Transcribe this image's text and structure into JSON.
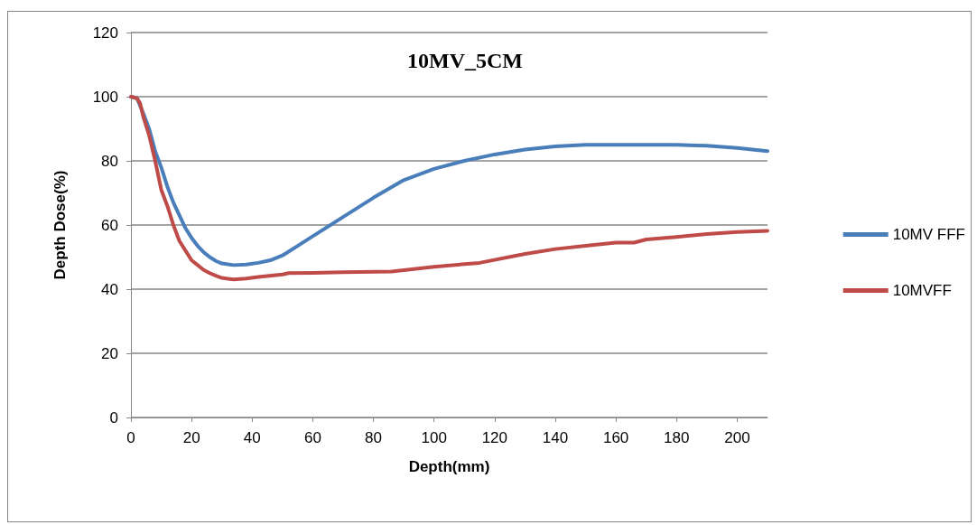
{
  "chart_data": {
    "type": "line",
    "title": "10MV_5CM",
    "xlabel": "Depth(mm)",
    "ylabel": "Depth Dose(%)",
    "xlim": [
      0,
      210
    ],
    "xticks": [
      0,
      20,
      40,
      60,
      80,
      100,
      120,
      140,
      160,
      180,
      200
    ],
    "ylim": [
      0,
      120
    ],
    "yticks": [
      0,
      20,
      40,
      60,
      80,
      100,
      120
    ],
    "grid": "y",
    "legend": "right",
    "marker": "none",
    "line_style": "solid",
    "series": [
      {
        "name": "10MV FFF",
        "color": "#4a7ebb",
        "x": [
          0,
          2,
          4,
          6,
          8,
          10,
          12,
          14,
          16,
          18,
          20,
          22,
          24,
          26,
          28,
          30,
          34,
          38,
          42,
          46,
          50,
          55,
          60,
          70,
          80,
          90,
          100,
          110,
          120,
          130,
          140,
          150,
          160,
          170,
          180,
          190,
          200,
          210
        ],
        "values": [
          100,
          99.5,
          95,
          90,
          83,
          78,
          72,
          67,
          63,
          59,
          56,
          53.5,
          51.5,
          50,
          48.8,
          48,
          47.5,
          47.7,
          48.2,
          49,
          50.5,
          53.5,
          56.5,
          62.5,
          68.5,
          74,
          77.5,
          80,
          82,
          83.5,
          84.5,
          85,
          85,
          85,
          85,
          84.7,
          84,
          83
        ]
      },
      {
        "name": "10MVFF",
        "color": "#be4b48",
        "x": [
          0,
          2,
          3,
          4,
          6,
          8,
          10,
          12,
          14,
          16,
          18,
          20,
          22,
          24,
          26,
          28,
          30,
          34,
          38,
          42,
          50,
          52,
          60,
          70,
          86,
          100,
          115,
          130,
          140,
          150,
          160,
          166,
          170,
          180,
          190,
          200,
          210
        ],
        "values": [
          100,
          99.5,
          98,
          94,
          88,
          80,
          71,
          66,
          60,
          55,
          52,
          49,
          47.5,
          46,
          45,
          44.2,
          43.5,
          43,
          43.3,
          43.8,
          44.6,
          45,
          45.1,
          45.3,
          45.5,
          47,
          48.2,
          51,
          52.5,
          53.5,
          54.5,
          54.5,
          55.5,
          56.3,
          57.2,
          57.8,
          58.2
        ]
      }
    ]
  }
}
